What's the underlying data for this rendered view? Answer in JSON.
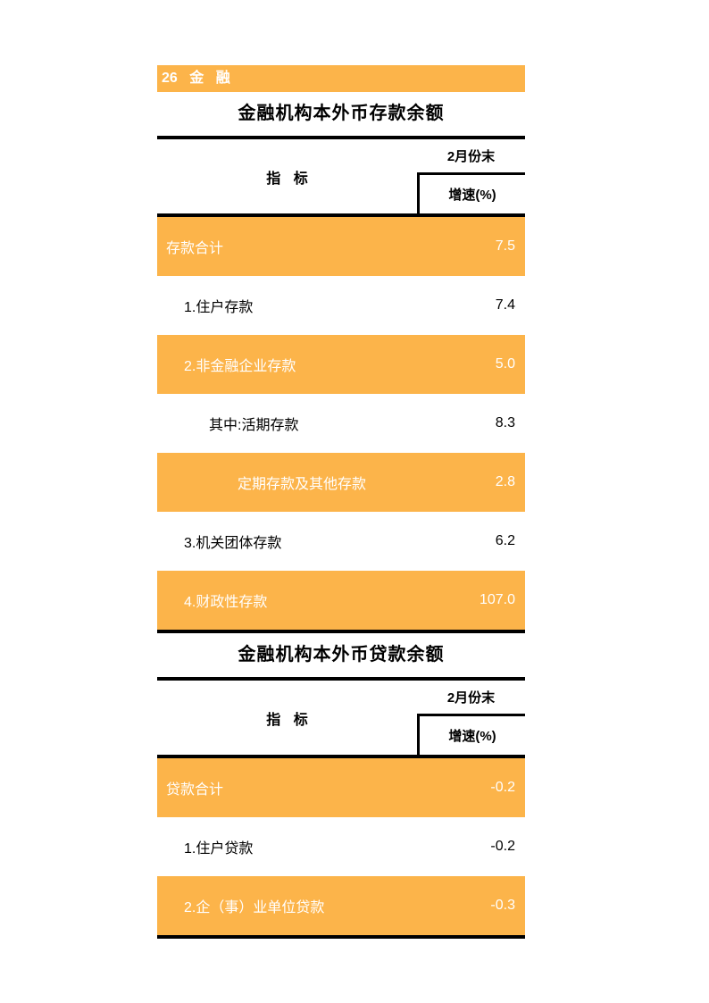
{
  "banner": {
    "label": "26 金 融"
  },
  "deposit_table": {
    "title": "金融机构本外币存款余额",
    "header": {
      "indicator": "指 标",
      "period": "2月份末",
      "metric": "增速(%)"
    },
    "rows": [
      {
        "label": "存款合计",
        "value": "7.5"
      },
      {
        "label": "1.住户存款",
        "value": "7.4"
      },
      {
        "label": "2.非金融企业存款",
        "value": "5.0"
      },
      {
        "label": "其中:活期存款",
        "value": "8.3"
      },
      {
        "label": "定期存款及其他存款",
        "value": "2.8"
      },
      {
        "label": "3.机关团体存款",
        "value": "6.2"
      },
      {
        "label": "4.财政性存款",
        "value": "107.0"
      }
    ]
  },
  "loan_table": {
    "title": "金融机构本外币贷款余额",
    "header": {
      "indicator": "指 标",
      "period": "2月份末",
      "metric": "增速(%)"
    },
    "rows": [
      {
        "label": "贷款合计",
        "value": "-0.2"
      },
      {
        "label": "1.住户贷款",
        "value": "-0.2"
      },
      {
        "label": "2.企（事）业单位贷款",
        "value": "-0.3"
      }
    ]
  },
  "colors": {
    "accent_orange": "#FCB44A",
    "text_on_orange": "#FFFFFF",
    "text": "#000000"
  }
}
